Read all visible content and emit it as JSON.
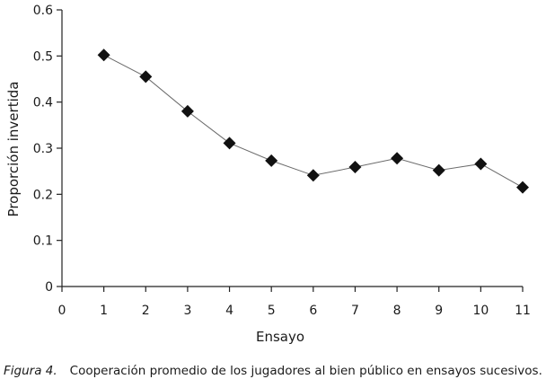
{
  "chart_data": {
    "type": "line",
    "title": "",
    "xlabel": "Ensayo",
    "ylabel": "Proporción invertida",
    "xlim": [
      0,
      11
    ],
    "ylim": [
      0,
      0.6
    ],
    "x_ticks": [
      0,
      1,
      2,
      3,
      4,
      5,
      6,
      7,
      8,
      9,
      10,
      11
    ],
    "y_ticks": [
      "0",
      "0.1",
      "0.2",
      "0.3",
      "0.4",
      "0.5",
      "0.6"
    ],
    "grid": false,
    "marker": "diamond",
    "series": [
      {
        "x": [
          1,
          2,
          3,
          4,
          5,
          6,
          7,
          8,
          9,
          10,
          11
        ],
        "values": [
          0.502,
          0.455,
          0.38,
          0.311,
          0.273,
          0.241,
          0.259,
          0.278,
          0.252,
          0.266,
          0.215
        ]
      }
    ],
    "colors": {
      "line": "#6b6b6b",
      "marker": "#111111",
      "axis": "#222222"
    }
  },
  "caption": {
    "figure_label": "Figura 4.",
    "text": "Cooperación promedio de los jugadores al bien público en ensayos sucesivos."
  }
}
